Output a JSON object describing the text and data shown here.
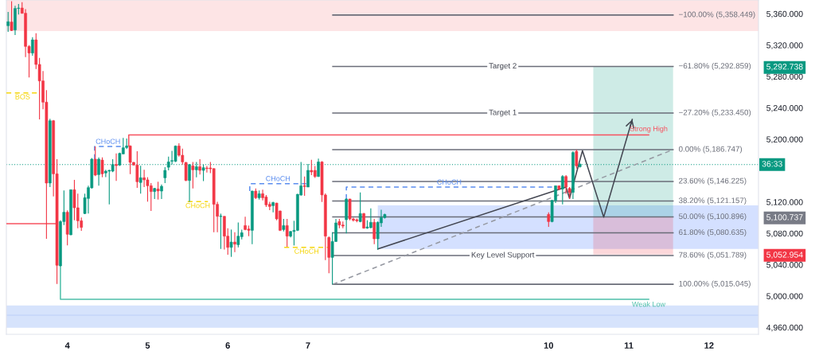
{
  "chart_data": {
    "type": "candlestick",
    "x": [
      3.261,
      3.304,
      3.348,
      3.391,
      3.435,
      3.478,
      3.522,
      3.565,
      3.609,
      3.652,
      3.696,
      3.739,
      3.783,
      3.826,
      3.87,
      3.913,
      3.957,
      4,
      4.043,
      4.087,
      4.13,
      4.174,
      4.217,
      4.261,
      4.304,
      4.348,
      4.391,
      4.435,
      4.478,
      4.522,
      4.565,
      4.609,
      4.652,
      4.696,
      4.739,
      4.783,
      4.826,
      4.87,
      4.913,
      4.957,
      5,
      5.043,
      5.087,
      5.13,
      5.174,
      5.217,
      5.261,
      5.304,
      5.348,
      5.391,
      5.435,
      5.478,
      5.522,
      5.565,
      5.609,
      5.652,
      5.696,
      5.739,
      5.783,
      5.826,
      5.87,
      5.913,
      5.957,
      6,
      6.043,
      6.087,
      6.13,
      6.174,
      6.217,
      6.261,
      6.304,
      6.348,
      6.391,
      6.435,
      6.478,
      6.522,
      6.565,
      6.609,
      6.652,
      6.696,
      6.739,
      6.783,
      6.826,
      6.87,
      6.913,
      6.957,
      7,
      7.043,
      7.087,
      7.13,
      7.174,
      7.217,
      7.261,
      7.304,
      7.348,
      7.391,
      7.435,
      7.478,
      7.522,
      7.565,
      7.609,
      7.652,
      7.696,
      7.739,
      7.783,
      7.826,
      7.87,
      7.913,
      7.957,
      10,
      10.043,
      10.087,
      10.13,
      10.174,
      10.217,
      10.261,
      10.304,
      10.348,
      10.391
    ],
    "ohlc": [
      [
        5344.8,
        5362.4,
        5337.0,
        5349.9
      ],
      [
        5349.5,
        5376.0,
        5338.0,
        5338.7
      ],
      [
        5339.4,
        5370.2,
        5332.9,
        5366.8
      ],
      [
        5366.8,
        5372.5,
        5359.0,
        5367.4
      ],
      [
        5367.4,
        5374.9,
        5360.0,
        5360.7
      ],
      [
        5360.7,
        5365.8,
        5304.8,
        5318.4
      ],
      [
        5318.4,
        5320.1,
        5278.8,
        5309.9
      ],
      [
        5309.9,
        5330.2,
        5306.5,
        5326.8
      ],
      [
        5326.8,
        5335.3,
        5289.6,
        5295.4
      ],
      [
        5295.4,
        5303.8,
        5225.3,
        5274.4
      ],
      [
        5274.4,
        5286.9,
        5238.2,
        5247.3
      ],
      [
        5247.3,
        5262.5,
        5073.0,
        5144.1
      ],
      [
        5144.1,
        5226.0,
        5139.0,
        5223.6
      ],
      [
        5223.6,
        5224.5,
        5127.2,
        5155.9
      ],
      [
        5155.9,
        5174.6,
        5015.5,
        5039.2
      ],
      [
        5038.5,
        5096.7,
        5038.0,
        5095.0
      ],
      [
        5095.0,
        5134.6,
        5090.6,
        5106.9
      ],
      [
        5106.9,
        5109.3,
        5064.6,
        5078.8
      ],
      [
        5078.1,
        5136.0,
        5077.5,
        5135.6
      ],
      [
        5135.6,
        5148.2,
        5096.7,
        5112.6
      ],
      [
        5112.6,
        5130.6,
        5086.6,
        5096.0
      ],
      [
        5096.0,
        5100.1,
        5083.2,
        5087.6
      ],
      [
        5105.2,
        5130.6,
        5104.5,
        5125.5
      ],
      [
        5124.5,
        5140.7,
        5105.2,
        5138.3
      ],
      [
        5138.0,
        5176.0,
        5137.0,
        5174.6
      ],
      [
        5174.6,
        5190.8,
        5153.0,
        5154.3
      ],
      [
        5154.9,
        5176.9,
        5140.7,
        5174.6
      ],
      [
        5173.5,
        5176.9,
        5151.6,
        5155.9
      ],
      [
        5157.0,
        5161.0,
        5151.6,
        5159.3
      ],
      [
        5159.3,
        5161.0,
        5117.0,
        5160.3
      ],
      [
        5159.3,
        5174.6,
        5158.0,
        5167.8
      ],
      [
        5167.8,
        5182.0,
        5146.8,
        5166.4
      ],
      [
        5167.1,
        5183.0,
        5166.0,
        5182.0
      ],
      [
        5181.3,
        5201.6,
        5181.0,
        5189.1
      ],
      [
        5189.4,
        5201.0,
        5187.4,
        5191.5
      ],
      [
        5191.5,
        5192.0,
        5155.6,
        5170.5
      ],
      [
        5170.5,
        5171.0,
        5166.5,
        5167.1
      ],
      [
        5167.1,
        5184.7,
        5138.0,
        5145.8
      ],
      [
        5144.8,
        5166.1,
        5130.6,
        5150.9
      ],
      [
        5150.9,
        5161.0,
        5139.0,
        5148.2
      ],
      [
        5148.2,
        5151.6,
        5120.4,
        5140.7
      ],
      [
        5140.7,
        5144.1,
        5108.6,
        5133.3
      ],
      [
        5133.3,
        5138.0,
        5123.8,
        5137.3
      ],
      [
        5136.6,
        5145.8,
        5123.1,
        5134.0
      ],
      [
        5133.9,
        5142.3,
        5123.7,
        5140.0
      ],
      [
        5150.8,
        5164.3,
        5144.0,
        5160.3
      ],
      [
        5164.3,
        5177.9,
        5160.3,
        5171.1
      ],
      [
        5172.0,
        5185.3,
        5167.7,
        5172.8
      ],
      [
        5171.8,
        5192.0,
        5171.0,
        5191.4
      ],
      [
        5191.4,
        5194.8,
        5177.9,
        5179.6
      ],
      [
        5179.6,
        5188.0,
        5167.7,
        5171.1
      ],
      [
        5170.4,
        5171.0,
        5146.7,
        5147.4
      ],
      [
        5147.4,
        5168.4,
        5120.3,
        5167.7
      ],
      [
        5166.0,
        5171.1,
        5137.3,
        5161.0
      ],
      [
        5161.0,
        5171.1,
        5151.5,
        5165.0
      ],
      [
        5165.0,
        5174.5,
        5154.9,
        5160.3
      ],
      [
        5160.3,
        5167.7,
        5146.7,
        5163.7
      ],
      [
        5163.4,
        5166.0,
        5157.6,
        5162.6
      ],
      [
        5163.4,
        5171.1,
        5156.9,
        5162.3
      ],
      [
        5162.6,
        5163.0,
        5081.4,
        5117.0
      ],
      [
        5117.0,
        5120.3,
        5081.4,
        5101.7
      ],
      [
        5101.4,
        5105.1,
        5060.1,
        5102.0
      ],
      [
        5101.7,
        5102.0,
        5059.4,
        5076.4
      ],
      [
        5076.4,
        5086.5,
        5052.7,
        5062.1
      ],
      [
        5062.1,
        5084.8,
        5050.0,
        5068.9
      ],
      [
        5068.9,
        5081.4,
        5056.1,
        5066.2
      ],
      [
        5065.5,
        5093.9,
        5062.1,
        5076.4
      ],
      [
        5075.7,
        5084.8,
        5072.3,
        5080.8
      ],
      [
        5089.9,
        5101.1,
        5084.0,
        5084.8
      ],
      [
        5085.5,
        5089.9,
        5076.4,
        5083.8
      ],
      [
        5083.8,
        5134.5,
        5066.2,
        5133.9
      ],
      [
        5133.9,
        5137.3,
        5123.7,
        5125.4
      ],
      [
        5125.4,
        5134.6,
        5123.0,
        5130.5
      ],
      [
        5130.5,
        5135.6,
        5122.0,
        5125.4
      ],
      [
        5126.4,
        5128.8,
        5113.6,
        5116.3
      ],
      [
        5117.0,
        5120.3,
        5109.5,
        5114.3
      ],
      [
        5115.3,
        5120.3,
        5106.8,
        5119.3
      ],
      [
        5118.6,
        5119.0,
        5096.7,
        5098.4
      ],
      [
        5108.5,
        5109.0,
        5083.0,
        5083.8
      ],
      [
        5084.8,
        5098.4,
        5082.5,
        5089.9
      ],
      [
        5089.9,
        5098.4,
        5062.8,
        5076.4
      ],
      [
        5076.4,
        5083.0,
        5074.7,
        5082.4
      ],
      [
        5082.4,
        5096.0,
        5064.5,
        5083.8
      ],
      [
        5083.8,
        5130.5,
        5083.0,
        5129.8
      ],
      [
        5128.8,
        5171.1,
        5128.0,
        5140.6
      ],
      [
        5140.7,
        5152.5,
        5127.8,
        5139.7
      ],
      [
        5139.0,
        5168.4,
        5139.0,
        5160.3
      ],
      [
        5160.3,
        5173.8,
        5154.2,
        5158.3
      ],
      [
        5160.3,
        5166.0,
        5150.8,
        5152.5
      ],
      [
        5152.5,
        5175.2,
        5152.0,
        5171.1
      ],
      [
        5171.1,
        5172.0,
        5120.0,
        5129.0
      ],
      [
        5128.9,
        5131.0,
        5045.9,
        5076.4
      ],
      [
        5074.7,
        5076.0,
        5029.0,
        5049.3
      ],
      [
        5049.3,
        5081.5,
        5015.0,
        5069.6
      ],
      [
        5069.6,
        5098.4,
        5069.0,
        5093.3
      ],
      [
        5095.0,
        5098.4,
        5086.6,
        5090.6
      ],
      [
        5090.6,
        5095.0,
        5086.6,
        5089.3
      ],
      [
        5097.4,
        5124.5,
        5079.8,
        5123.8
      ],
      [
        5123.8,
        5124.0,
        5096.7,
        5098.4
      ],
      [
        5098.4,
        5100.0,
        5095.0,
        5096.7
      ],
      [
        5097.4,
        5099.0,
        5094.0,
        5096.0
      ],
      [
        5095.0,
        5132.2,
        5094.0,
        5105.2
      ],
      [
        5105.2,
        5106.0,
        5086.0,
        5086.6
      ],
      [
        5086.6,
        5096.7,
        5085.9,
        5088.2
      ],
      [
        5087.2,
        5111.9,
        5086.6,
        5094.0
      ],
      [
        5094.0,
        5098.4,
        5066.2,
        5073.0
      ],
      [
        5073.0,
        5095.0,
        5059.4,
        5094.0
      ],
      [
        5093.3,
        5110.2,
        5088.2,
        5100.0
      ],
      [
        5100.0,
        5105.1,
        5099.0,
        5104.1
      ],
      [
        5104.1,
        5106.8,
        5088.2,
        5095.0
      ],
      [
        5095.0,
        5122.5,
        5094.0,
        5122.0
      ],
      [
        5122.0,
        5141.0,
        5118.7,
        5140.6
      ],
      [
        5140.6,
        5141.0,
        5135.0,
        5136.6
      ],
      [
        5136.6,
        5154.2,
        5117.0,
        5152.5
      ],
      [
        5152.5,
        5154.2,
        5130.5,
        5139.0
      ],
      [
        5137.3,
        5139.0,
        5123.7,
        5132.2
      ],
      [
        5132.2,
        5184.6,
        5123.7,
        5183.0
      ],
      [
        5184.6,
        5186.7,
        5162.6,
        5166.0
      ],
      [
        5165.0,
        5169.0,
        5164.0,
        5168.4
      ]
    ],
    "colors": [
      "#089981",
      "#f23645",
      "#089981",
      "#089981",
      "#f23645",
      "#f23645",
      "#f23645",
      "#089981",
      "#f23645",
      "#f23645",
      "#f23645",
      "#f23645",
      "#089981",
      "#f23645",
      "#f23645",
      "#089981",
      "#089981",
      "#f23645",
      "#089981",
      "#f23645",
      "#f23645",
      "#f23645",
      "#089981",
      "#089981",
      "#089981",
      "#f23645",
      "#089981",
      "#f23645",
      "#089981",
      "#089981",
      "#089981",
      "#f23645",
      "#089981",
      "#089981",
      "#089981",
      "#f23645",
      "#f23645",
      "#f23645",
      "#089981",
      "#f23645",
      "#f23645",
      "#f23645",
      "#089981",
      "#f23645",
      "#089981",
      "#089981",
      "#089981",
      "#089981",
      "#089981",
      "#f23645",
      "#f23645",
      "#f23645",
      "#089981",
      "#f23645",
      "#089981",
      "#f23645",
      "#089981",
      "#f23645",
      "#f23645",
      "#f23645",
      "#f23645",
      "#089981",
      "#f23645",
      "#f23645",
      "#089981",
      "#f23645",
      "#089981",
      "#089981",
      "#f23645",
      "#f23645",
      "#089981",
      "#f23645",
      "#089981",
      "#f23645",
      "#f23645",
      "#f23645",
      "#089981",
      "#f23645",
      "#f23645",
      "#089981",
      "#f23645",
      "#089981",
      "#089981",
      "#089981",
      "#089981",
      "#f23645",
      "#089981",
      "#f23645",
      "#f23645",
      "#089981",
      "#f23645",
      "#f23645",
      "#f23645",
      "#089981",
      "#089981",
      "#f23645",
      "#f23645",
      "#089981",
      "#f23645",
      "#f23645",
      "#f23645",
      "#089981",
      "#f23645",
      "#089981",
      "#089981",
      "#f23645",
      "#089981",
      "#089981",
      "#089981",
      "#f23645",
      "#089981",
      "#089981",
      "#f23645",
      "#089981",
      "#f23645",
      "#f23645",
      "#089981",
      "#f23645",
      "#089981"
    ],
    "series": [
      {
        "type": "line",
        "x": [
          7.87,
          12.617
        ],
        "values": [
          null,
          null
        ],
        "lower": [
          5060.1,
          5060.1
        ],
        "upper": [
          5115.6,
          5115.6
        ],
        "color": "#2962ff"
      },
      {
        "type": "line",
        "x": [
          10.557,
          11.552
        ],
        "values": [
          null,
          null
        ],
        "lower": [
          5100.737,
          5100.737
        ],
        "upper": [
          5292.738,
          5292.738
        ],
        "color": "#089981"
      },
      {
        "type": "line",
        "x": [
          10.557,
          11.552
        ],
        "values": [
          null,
          null
        ],
        "lower": [
          5052.954,
          5052.954
        ],
        "upper": [
          5100.737,
          5100.737
        ],
        "color": "#f23645"
      },
      {
        "type": "line",
        "name": "−100.00% (5,358.449)",
        "x": [
          7.309,
          11.552
        ],
        "values": [
          5358.449,
          5358.449
        ],
        "color": "#6a6d78"
      },
      {
        "type": "line",
        "name": "−61.80% (5,292.859)",
        "x": [
          7.309,
          11.552
        ],
        "values": [
          5292.859,
          5292.859
        ],
        "color": "#6a6d78"
      },
      {
        "type": "line",
        "name": "−27.20% (5,233.450)",
        "x": [
          7.309,
          11.552
        ],
        "values": [
          5233.45,
          5233.45
        ],
        "color": "#6a6d78"
      },
      {
        "type": "line",
        "name": "0.00% (5,186.747)",
        "x": [
          7.309,
          11.552
        ],
        "values": [
          5186.747,
          5186.747
        ],
        "color": "#6a6d78"
      },
      {
        "type": "line",
        "name": "23.60% (5,146.225)",
        "x": [
          7.309,
          11.552
        ],
        "values": [
          5146.225,
          5146.225
        ],
        "color": "#6a6d78"
      },
      {
        "type": "line",
        "name": "38.20% (5,121.157)",
        "x": [
          7.309,
          11.552
        ],
        "values": [
          5121.157,
          5121.157
        ],
        "color": "#6a6d78"
      },
      {
        "type": "line",
        "name": "50.00% (5,100.896)",
        "x": [
          7.309,
          11.552
        ],
        "values": [
          5100.896,
          5100.896
        ],
        "color": "#6a6d78"
      },
      {
        "type": "line",
        "name": "61.80% (5,080.635)",
        "x": [
          7.309,
          11.552
        ],
        "values": [
          5080.635,
          5080.635
        ],
        "color": "#6a6d78"
      },
      {
        "type": "line",
        "name": "78.60% (5,051.789)",
        "x": [
          7.309,
          11.552
        ],
        "values": [
          5051.789,
          5051.789
        ],
        "color": "#6a6d78"
      },
      {
        "type": "line",
        "name": "100.00% (5,015.045)",
        "x": [
          7.309,
          11.552
        ],
        "values": [
          5015.045,
          5015.045
        ],
        "color": "#6a6d78"
      },
      {
        "type": "line",
        "x": [
          7.309,
          11.552
        ],
        "values": [
          5015.045,
          5186.747
        ],
        "color": "#9598a1",
        "line_style": "dashed"
      },
      {
        "type": "line",
        "x": [
          7.87,
          10.217,
          10.261,
          10.422,
          10.687,
          11.043
        ],
        "values": [
          5060.1,
          5139.0,
          5124.5,
          5185.4,
          5100.7,
          5225.3
        ],
        "color": "#434651"
      },
      {
        "type": "line",
        "name": "BOS",
        "x": [
          3.239,
          3.643
        ],
        "values": [
          5259.1,
          5259.1
        ],
        "color": "#f5d60f",
        "line_style": "dashed"
      },
      {
        "type": "line",
        "x": [
          3.239,
          3.85
        ],
        "values": [
          5092.3,
          5092.3
        ],
        "color": "#f7525f"
      },
      {
        "type": "line",
        "name": "CHoCH",
        "x": [
          4.339,
          4.339,
          4.674
        ],
        "values": [
          5174.6,
          5190.8,
          5190.8
        ],
        "color": "#5b8def",
        "line_style": "dashed"
      },
      {
        "type": "line",
        "name": "Strong High",
        "x": [
          4.765,
          4.765,
          11.248
        ],
        "values": [
          5191.5,
          5205.6,
          5205.6
        ],
        "color": "#f7525f"
      },
      {
        "type": "line",
        "name": "CHoCH",
        "x": [
          5.5,
          5.752
        ],
        "values": [
          5120.4,
          5120.4
        ],
        "color": "#f5d60f",
        "line_style": "dashed"
      },
      {
        "type": "line",
        "name": "CHoCH",
        "x": [
          6.274,
          6.274,
          6.978
        ],
        "values": [
          5133.9,
          5143.4,
          5143.4
        ],
        "color": "#5b8def",
        "line_style": "dashed"
      },
      {
        "type": "line",
        "name": "CHoCH",
        "x": [
          6.704,
          7.261
        ],
        "values": [
          5062.1,
          5062.1
        ],
        "color": "#f5d60f",
        "line_style": "dashed"
      },
      {
        "type": "line",
        "name": "CHoCH",
        "x": [
          7.478,
          7.478,
          10.043
        ],
        "values": [
          5123.8,
          5139.0,
          5139.0
        ],
        "color": "#5b8def",
        "line_style": "dashed"
      },
      {
        "type": "line",
        "name": "Weak Low",
        "x": [
          3.913,
          3.913,
          11.248
        ],
        "values": [
          5038.5,
          4995.9,
          4995.9
        ],
        "color": "#4ebfa9"
      }
    ],
    "bands": [
      {
        "axis": "y",
        "from": 5338.0,
        "to": 5377.6,
        "color": "#fde4e5"
      },
      {
        "axis": "y",
        "from": 4959.6,
        "to": 4988.1,
        "color": "#d6e3fc"
      }
    ],
    "ref_lines": [
      {
        "axis": "y",
        "value": 5167.7,
        "color": "#089981",
        "line_style": "dotted"
      },
      {
        "axis": "y",
        "value": 4975.5,
        "color": "#bcd0f7"
      }
    ],
    "annotations": [
      "Target 2",
      "Target 1",
      "Key Level Support",
      "36:33"
    ],
    "xlim": [
      3.239,
      12.617
    ],
    "ylim": [
      4951.2,
      5377.6
    ],
    "xticks": [
      4,
      5,
      6,
      7,
      10,
      11,
      12
    ],
    "yticks": [
      {
        "value": 4960,
        "label": "4,960.000"
      },
      {
        "value": 5000,
        "label": "5,000.000"
      },
      {
        "value": 5040,
        "label": "5,040.000"
      },
      {
        "value": 5080,
        "label": "5,080.000"
      },
      {
        "value": 5120,
        "label": "5,120.000"
      },
      {
        "value": 5200,
        "label": "5,200.000"
      },
      {
        "value": 5240,
        "label": "5,240.000"
      },
      {
        "value": 5280,
        "label": "5,280.000"
      },
      {
        "value": 5320,
        "label": "5,320.000"
      },
      {
        "value": 5360,
        "label": "5,360.000"
      },
      {
        "value": 5292.738,
        "label": "5,292.738"
      },
      {
        "value": 5100.737,
        "label": "5,100.737"
      },
      {
        "value": 5052.954,
        "label": "5,052.954"
      }
    ]
  }
}
